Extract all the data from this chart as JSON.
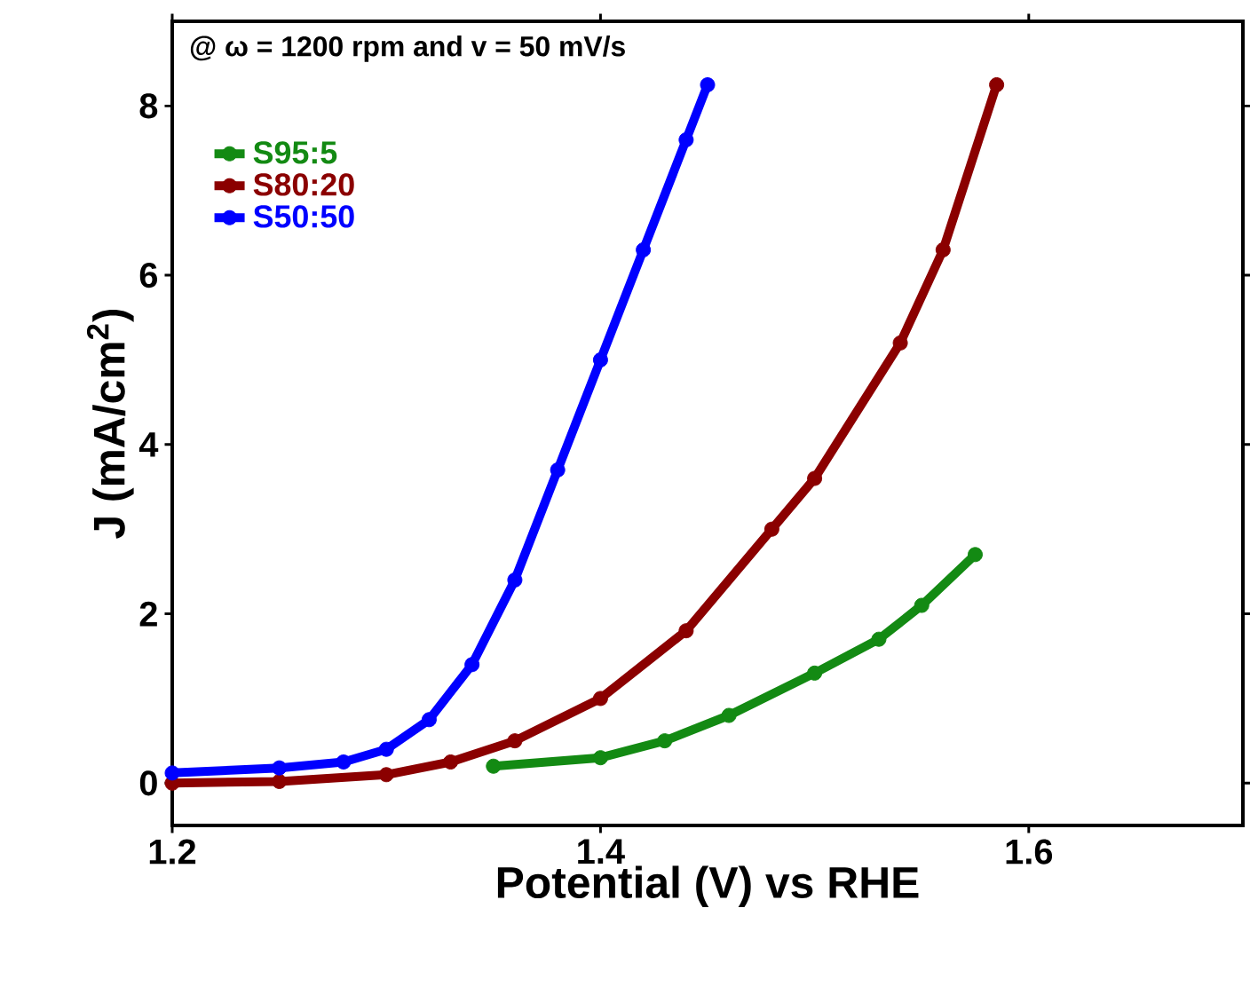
{
  "chart_data": {
    "type": "line",
    "xlabel": "Potential (V) vs RHE",
    "ylabel": "J (mA/cm$^{2}$)",
    "annotations": [
      "@ ω = 1200 rpm and v = 50 mV/s"
    ],
    "xlim": [
      1.2,
      1.7
    ],
    "ylim": [
      -0.5,
      9
    ],
    "xticks": [
      1.2,
      1.4,
      1.6
    ],
    "yticks": [
      0,
      2,
      4,
      6,
      8
    ],
    "legend": "top left",
    "marker": "circle",
    "line_style": "solid",
    "series": [
      {
        "name": "S95:5",
        "color": "#138a13",
        "x": [
          1.35,
          1.4,
          1.43,
          1.46,
          1.5,
          1.53,
          1.55,
          1.575
        ],
        "values": [
          0.2,
          0.3,
          0.5,
          0.8,
          1.3,
          1.7,
          2.1,
          2.7
        ]
      },
      {
        "name": "S80:20",
        "color": "#8b0000",
        "x": [
          1.2,
          1.25,
          1.3,
          1.33,
          1.36,
          1.4,
          1.44,
          1.48,
          1.5,
          1.54,
          1.56,
          1.585
        ],
        "values": [
          0.0,
          0.02,
          0.1,
          0.25,
          0.5,
          1.0,
          1.8,
          3.0,
          3.6,
          5.2,
          6.3,
          8.25
        ]
      },
      {
        "name": "S50:50",
        "color": "#0000ff",
        "x": [
          1.2,
          1.25,
          1.28,
          1.3,
          1.32,
          1.34,
          1.36,
          1.38,
          1.4,
          1.42,
          1.44,
          1.45
        ],
        "values": [
          0.12,
          0.18,
          0.25,
          0.4,
          0.75,
          1.4,
          2.4,
          3.7,
          5.0,
          6.3,
          7.6,
          8.25
        ]
      }
    ]
  }
}
